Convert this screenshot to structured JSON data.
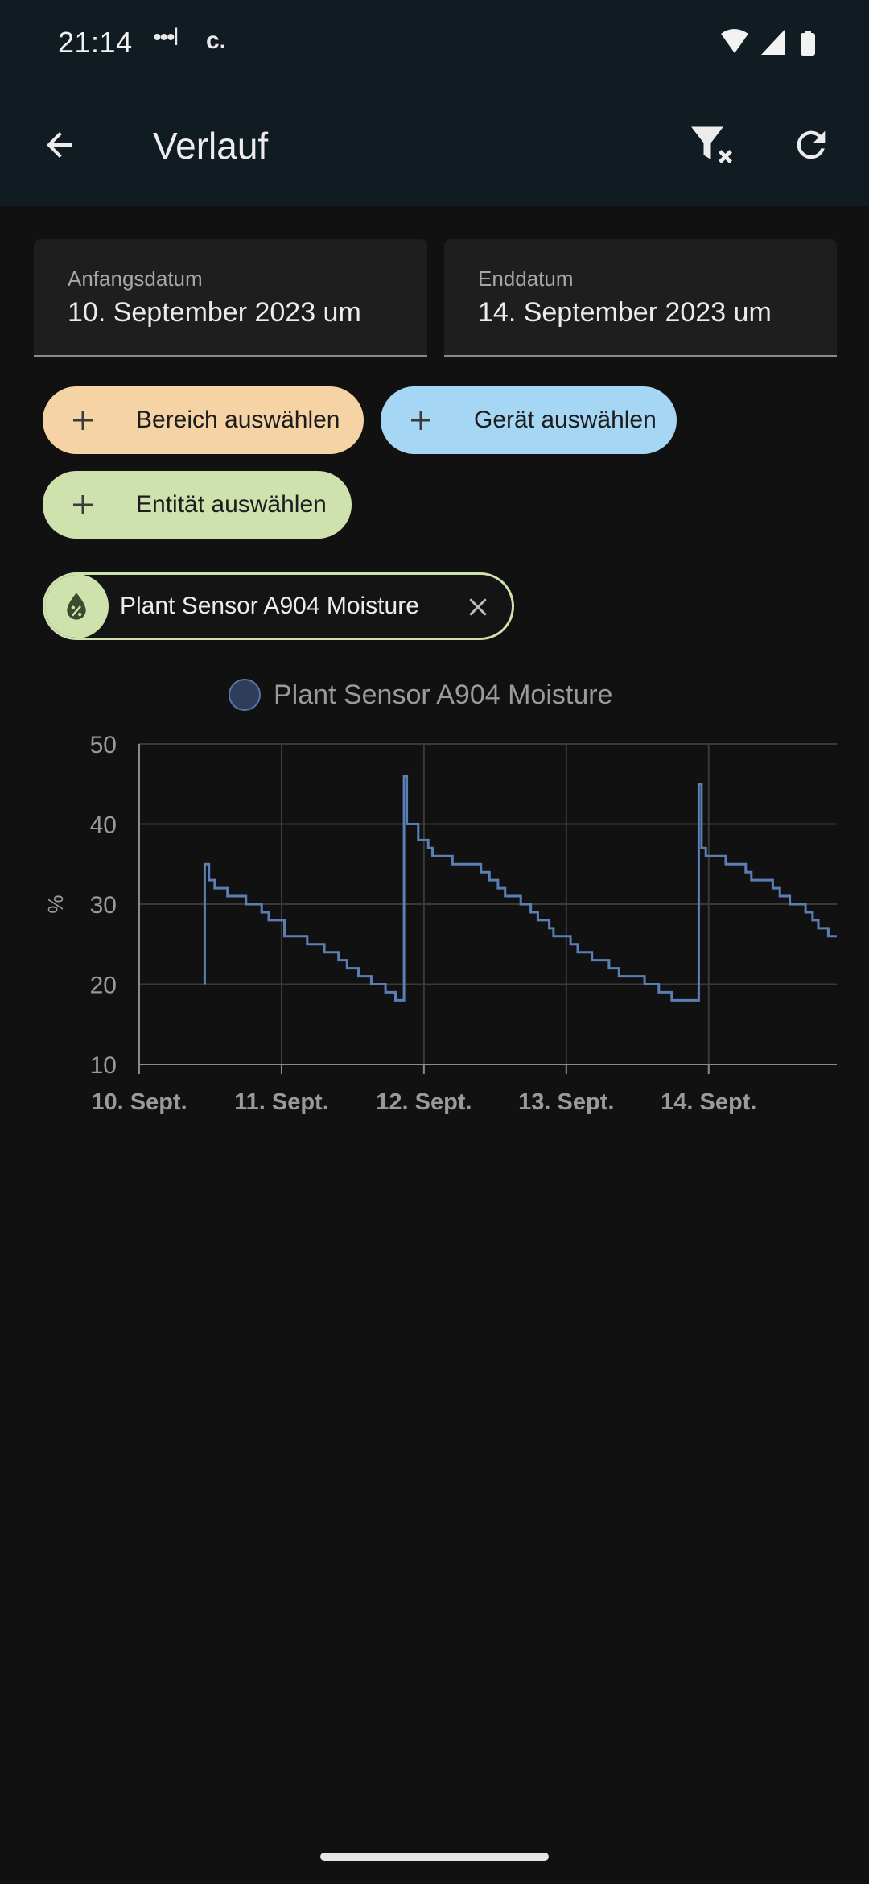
{
  "status_bar": {
    "time": "21:14",
    "dots": "•••l",
    "carrier_glyph": "c."
  },
  "app_bar": {
    "title": "Verlauf"
  },
  "start_date": {
    "label": "Anfangsdatum",
    "value": "10. September 2023 um"
  },
  "end_date": {
    "label": "Enddatum",
    "value": "14. September 2023 um"
  },
  "chips": {
    "area": {
      "label": "Bereich auswählen",
      "color": "#f6d3a5"
    },
    "device": {
      "label": "Gerät auswählen",
      "color": "#a5d6f4"
    },
    "entity": {
      "label": "Entität auswählen",
      "color": "#cfe2ae"
    }
  },
  "selected_entity": {
    "label": "Plant Sensor A904 Moisture",
    "icon": "water-percent-icon"
  },
  "colors": {
    "series": "#5b7fb5",
    "topbar": "#111b22",
    "background": "#111111"
  },
  "chart_data": {
    "type": "line",
    "step": true,
    "ylabel": "%",
    "ylim": [
      10,
      50
    ],
    "yticks": [
      10,
      20,
      30,
      40,
      50
    ],
    "xlim": [
      0,
      4.9
    ],
    "xticks": [
      {
        "x": 0,
        "label": "10. Sept."
      },
      {
        "x": 1,
        "label": "11. Sept."
      },
      {
        "x": 2,
        "label": "12. Sept."
      },
      {
        "x": 3,
        "label": "13. Sept."
      },
      {
        "x": 4,
        "label": "14. Sept."
      }
    ],
    "grid": true,
    "legend_position": "top-center",
    "series": [
      {
        "name": "Plant Sensor A904 Moisture",
        "points": [
          [
            0.46,
            20
          ],
          [
            0.46,
            35
          ],
          [
            0.49,
            35
          ],
          [
            0.49,
            33
          ],
          [
            0.53,
            33
          ],
          [
            0.53,
            32
          ],
          [
            0.62,
            32
          ],
          [
            0.62,
            31
          ],
          [
            0.75,
            31
          ],
          [
            0.75,
            30
          ],
          [
            0.86,
            30
          ],
          [
            0.86,
            29
          ],
          [
            0.91,
            29
          ],
          [
            0.91,
            28
          ],
          [
            1.02,
            28
          ],
          [
            1.02,
            26
          ],
          [
            1.06,
            26
          ],
          [
            1.06,
            26
          ],
          [
            1.18,
            26
          ],
          [
            1.18,
            25
          ],
          [
            1.3,
            25
          ],
          [
            1.3,
            24
          ],
          [
            1.4,
            24
          ],
          [
            1.4,
            23
          ],
          [
            1.46,
            23
          ],
          [
            1.46,
            22
          ],
          [
            1.54,
            22
          ],
          [
            1.54,
            21
          ],
          [
            1.63,
            21
          ],
          [
            1.63,
            20
          ],
          [
            1.73,
            20
          ],
          [
            1.73,
            19
          ],
          [
            1.8,
            19
          ],
          [
            1.8,
            18
          ],
          [
            1.86,
            18
          ],
          [
            1.86,
            46
          ],
          [
            1.88,
            46
          ],
          [
            1.88,
            40
          ],
          [
            1.96,
            40
          ],
          [
            1.96,
            38
          ],
          [
            2.03,
            38
          ],
          [
            2.03,
            37
          ],
          [
            2.06,
            37
          ],
          [
            2.06,
            36
          ],
          [
            2.2,
            36
          ],
          [
            2.2,
            35
          ],
          [
            2.4,
            35
          ],
          [
            2.4,
            34
          ],
          [
            2.46,
            34
          ],
          [
            2.46,
            33
          ],
          [
            2.52,
            33
          ],
          [
            2.52,
            32
          ],
          [
            2.57,
            32
          ],
          [
            2.57,
            31
          ],
          [
            2.68,
            31
          ],
          [
            2.68,
            30
          ],
          [
            2.75,
            30
          ],
          [
            2.75,
            29
          ],
          [
            2.8,
            29
          ],
          [
            2.8,
            28
          ],
          [
            2.88,
            28
          ],
          [
            2.88,
            27
          ],
          [
            2.91,
            27
          ],
          [
            2.91,
            26
          ],
          [
            3.03,
            26
          ],
          [
            3.03,
            25
          ],
          [
            3.08,
            25
          ],
          [
            3.08,
            24
          ],
          [
            3.18,
            24
          ],
          [
            3.18,
            23
          ],
          [
            3.3,
            23
          ],
          [
            3.3,
            22
          ],
          [
            3.37,
            22
          ],
          [
            3.37,
            21
          ],
          [
            3.55,
            21
          ],
          [
            3.55,
            20
          ],
          [
            3.65,
            20
          ],
          [
            3.65,
            19
          ],
          [
            3.74,
            19
          ],
          [
            3.74,
            18
          ],
          [
            3.93,
            18
          ],
          [
            3.93,
            45
          ],
          [
            3.95,
            45
          ],
          [
            3.95,
            37
          ],
          [
            3.98,
            37
          ],
          [
            3.98,
            36
          ],
          [
            4.12,
            36
          ],
          [
            4.12,
            35
          ],
          [
            4.26,
            35
          ],
          [
            4.26,
            34
          ],
          [
            4.3,
            34
          ],
          [
            4.3,
            33
          ],
          [
            4.45,
            33
          ],
          [
            4.45,
            32
          ],
          [
            4.5,
            32
          ],
          [
            4.5,
            31
          ],
          [
            4.57,
            31
          ],
          [
            4.57,
            30
          ],
          [
            4.68,
            30
          ],
          [
            4.68,
            29
          ],
          [
            4.73,
            29
          ],
          [
            4.73,
            28
          ],
          [
            4.77,
            28
          ],
          [
            4.77,
            27
          ],
          [
            4.84,
            27
          ],
          [
            4.84,
            26
          ],
          [
            4.9,
            26
          ]
        ]
      }
    ]
  }
}
